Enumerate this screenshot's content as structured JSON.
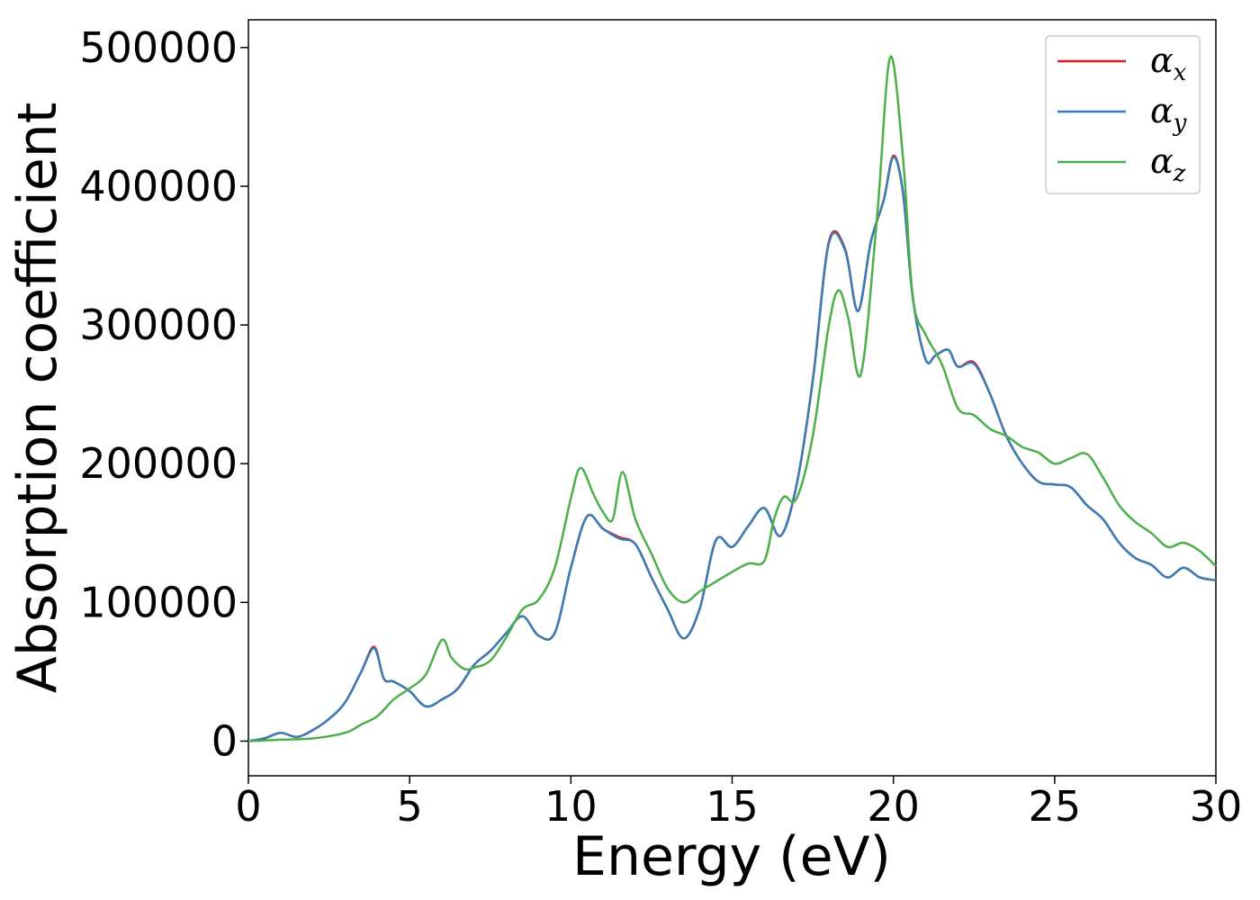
{
  "chart_data": {
    "type": "line",
    "title": "",
    "xlabel": "Energy (eV)",
    "ylabel": "Absorption coefficient",
    "xlim": [
      0,
      30
    ],
    "ylim": [
      -25000,
      520000
    ],
    "xticks": [
      0,
      5,
      10,
      15,
      20,
      25,
      30
    ],
    "xtick_labels": [
      "0",
      "5",
      "10",
      "15",
      "20",
      "25",
      "30"
    ],
    "yticks": [
      0,
      100000,
      200000,
      300000,
      400000,
      500000
    ],
    "ytick_labels": [
      "0",
      "100000",
      "200000",
      "300000",
      "400000",
      "500000"
    ],
    "grid": false,
    "legend_position": "top-right",
    "series": [
      {
        "name": "α_x",
        "legend_base": "α",
        "legend_sub": "x",
        "color": "#e41a1c",
        "x": [
          0,
          0.5,
          1,
          1.5,
          2,
          2.5,
          3,
          3.5,
          3.9,
          4.2,
          4.5,
          5,
          5.5,
          6,
          6.5,
          7,
          7.5,
          8,
          8.5,
          9,
          9.5,
          10,
          10.5,
          11,
          11.5,
          12,
          12.5,
          13,
          13.5,
          14,
          14.5,
          15,
          15.5,
          16,
          16.5,
          17,
          17.5,
          18,
          18.5,
          18.9,
          19.3,
          19.7,
          20,
          20.3,
          20.6,
          21,
          21.3,
          21.7,
          22,
          22.5,
          23,
          23.5,
          24,
          24.5,
          25,
          25.5,
          26,
          26.5,
          27,
          27.5,
          28,
          28.5,
          29,
          29.5,
          30
        ],
        "y": [
          0,
          2000,
          6000,
          3000,
          8000,
          16000,
          28000,
          50000,
          68000,
          45000,
          43000,
          36000,
          25000,
          30000,
          38000,
          55000,
          65000,
          78000,
          90000,
          76000,
          78000,
          125000,
          162000,
          153000,
          147000,
          142000,
          118000,
          95000,
          74000,
          96000,
          145000,
          140000,
          155000,
          168000,
          148000,
          185000,
          260000,
          360000,
          355000,
          310000,
          360000,
          390000,
          422000,
          395000,
          320000,
          275000,
          278000,
          282000,
          270000,
          273000,
          250000,
          220000,
          200000,
          187000,
          185000,
          183000,
          170000,
          160000,
          143000,
          132000,
          127000,
          118000,
          125000,
          118000,
          116000
        ]
      },
      {
        "name": "α_y",
        "legend_base": "α",
        "legend_sub": "y",
        "color": "#377eb8",
        "x": [
          0,
          0.5,
          1,
          1.5,
          2,
          2.5,
          3,
          3.5,
          3.9,
          4.2,
          4.5,
          5,
          5.5,
          6,
          6.5,
          7,
          7.5,
          8,
          8.5,
          9,
          9.5,
          10,
          10.5,
          11,
          11.5,
          12,
          12.5,
          13,
          13.5,
          14,
          14.5,
          15,
          15.5,
          16,
          16.5,
          17,
          17.5,
          18,
          18.5,
          18.9,
          19.3,
          19.7,
          20,
          20.3,
          20.6,
          21,
          21.3,
          21.7,
          22,
          22.5,
          23,
          23.5,
          24,
          24.5,
          25,
          25.5,
          26,
          26.5,
          27,
          27.5,
          28,
          28.5,
          29,
          29.5,
          30
        ],
        "y": [
          0,
          2000,
          6000,
          3000,
          8000,
          16000,
          28000,
          50000,
          67000,
          45000,
          43000,
          36000,
          25000,
          30000,
          38000,
          55000,
          65000,
          78000,
          90000,
          76000,
          78000,
          125000,
          162000,
          153000,
          146000,
          142000,
          118000,
          95000,
          74000,
          96000,
          145000,
          140000,
          155000,
          168000,
          148000,
          185000,
          260000,
          359000,
          354000,
          310000,
          360000,
          390000,
          421000,
          395000,
          320000,
          275000,
          278000,
          282000,
          270000,
          272000,
          250000,
          220000,
          200000,
          187000,
          185000,
          183000,
          170000,
          160000,
          143000,
          132000,
          127000,
          118000,
          125000,
          118000,
          116000
        ]
      },
      {
        "name": "α_z",
        "legend_base": "α",
        "legend_sub": "z",
        "color": "#4daf4a",
        "x": [
          0,
          1,
          2,
          3,
          3.5,
          4,
          4.5,
          5,
          5.5,
          6,
          6.3,
          6.7,
          7,
          7.5,
          8,
          8.5,
          9,
          9.5,
          10,
          10.3,
          10.7,
          11,
          11.3,
          11.6,
          12,
          12.5,
          13,
          13.5,
          14,
          14.5,
          15,
          15.5,
          16,
          16.3,
          16.6,
          17,
          17.5,
          18,
          18.3,
          18.6,
          19,
          19.5,
          19.9,
          20.3,
          20.6,
          21,
          21.5,
          22,
          22.5,
          23,
          23.5,
          24,
          24.5,
          25,
          25.5,
          26,
          26.5,
          27,
          27.5,
          28,
          28.5,
          29,
          29.5,
          30
        ],
        "y": [
          0,
          1000,
          2000,
          6000,
          12000,
          18000,
          30000,
          38000,
          48000,
          73000,
          60000,
          52000,
          53000,
          58000,
          75000,
          95000,
          102000,
          125000,
          175000,
          197000,
          178000,
          165000,
          160000,
          194000,
          160000,
          135000,
          110000,
          100000,
          108000,
          115000,
          122000,
          128000,
          130000,
          160000,
          176000,
          175000,
          220000,
          300000,
          325000,
          305000,
          265000,
          380000,
          493000,
          420000,
          320000,
          293000,
          272000,
          240000,
          235000,
          225000,
          220000,
          212000,
          208000,
          200000,
          204000,
          207000,
          190000,
          170000,
          158000,
          150000,
          140000,
          143000,
          137000,
          126000
        ]
      }
    ]
  }
}
